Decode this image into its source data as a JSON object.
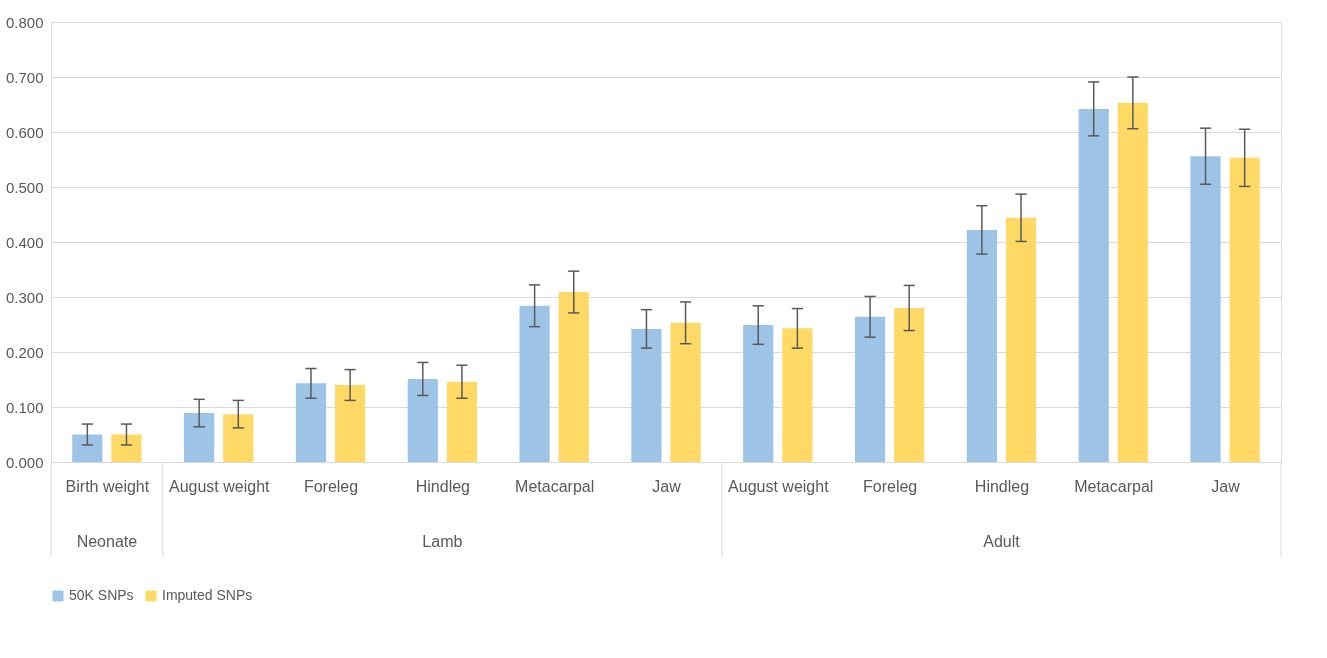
{
  "chart_data": {
    "type": "bar",
    "categories": [
      "Birth weight",
      "August weight",
      "Foreleg",
      "Hindleg",
      "Metacarpal",
      "Jaw",
      "August weight",
      "Foreleg",
      "Hindleg",
      "Metacarpal",
      "Jaw"
    ],
    "series": [
      {
        "name": "50K SNPs",
        "color": "#9dc3e6",
        "values": [
          0.05,
          0.089,
          0.143,
          0.151,
          0.284,
          0.242,
          0.249,
          0.264,
          0.422,
          0.642,
          0.556
        ],
        "errors": [
          0.019,
          0.025,
          0.027,
          0.03,
          0.038,
          0.035,
          0.035,
          0.037,
          0.044,
          0.049,
          0.051
        ]
      },
      {
        "name": "Imputed SNPs",
        "color": "#ffd966",
        "values": [
          0.05,
          0.087,
          0.14,
          0.146,
          0.309,
          0.253,
          0.243,
          0.28,
          0.444,
          0.653,
          0.553
        ],
        "errors": [
          0.019,
          0.025,
          0.028,
          0.03,
          0.038,
          0.038,
          0.036,
          0.041,
          0.043,
          0.047,
          0.052
        ]
      }
    ],
    "ylim": [
      0,
      0.8
    ],
    "yticks": [
      {
        "value": 0,
        "label": "0.000"
      },
      {
        "value": 0.1,
        "label": "0.100"
      },
      {
        "value": 0.2,
        "label": "0.200"
      },
      {
        "value": 0.3,
        "label": "0.300"
      },
      {
        "value": 0.4,
        "label": "0.400"
      },
      {
        "value": 0.5,
        "label": "0.500"
      },
      {
        "value": 0.6,
        "label": "0.600"
      },
      {
        "value": 0.7,
        "label": "0.700"
      },
      {
        "value": 0.8,
        "label": "0.800"
      }
    ],
    "annotations": [
      "Neonate",
      "Lamb",
      "Adult"
    ],
    "grid": "y",
    "legend": "bottom"
  }
}
